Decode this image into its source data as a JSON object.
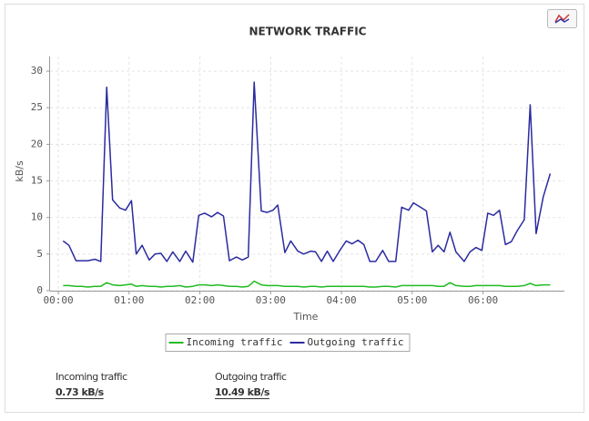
{
  "chart_data": {
    "type": "line",
    "title": "NETWORK TRAFFIC",
    "y_label": "kB/s",
    "x_label": "Time",
    "x": [
      4,
      9,
      15,
      20,
      25,
      31,
      36,
      41,
      46,
      52,
      57,
      62,
      66,
      71,
      77,
      82,
      87,
      92,
      97,
      103,
      108,
      114,
      119,
      124,
      130,
      135,
      140,
      145,
      151,
      156,
      161,
      166,
      172,
      177,
      182,
      186,
      192,
      197,
      203,
      208,
      214,
      218,
      223,
      228,
      233,
      239,
      244,
      249,
      254,
      259,
      264,
      269,
      275,
      280,
      286,
      291,
      297,
      301,
      307,
      312,
      317,
      322,
      327,
      332,
      337,
      344,
      349,
      354,
      359,
      364,
      369,
      374,
      379,
      384,
      389,
      395,
      400,
      405,
      411,
      417
    ],
    "series": [
      {
        "name": "Incoming traffic",
        "color": "#22bb22",
        "values": [
          0.7,
          0.7,
          0.6,
          0.6,
          0.5,
          0.6,
          0.6,
          1.1,
          0.8,
          0.7,
          0.8,
          0.9,
          0.6,
          0.7,
          0.6,
          0.6,
          0.5,
          0.6,
          0.6,
          0.7,
          0.5,
          0.6,
          0.8,
          0.8,
          0.7,
          0.8,
          0.7,
          0.6,
          0.6,
          0.5,
          0.6,
          1.3,
          0.8,
          0.7,
          0.7,
          0.7,
          0.6,
          0.6,
          0.6,
          0.5,
          0.6,
          0.6,
          0.5,
          0.6,
          0.6,
          0.6,
          0.6,
          0.6,
          0.6,
          0.6,
          0.5,
          0.5,
          0.6,
          0.6,
          0.5,
          0.7,
          0.7,
          0.7,
          0.7,
          0.7,
          0.7,
          0.6,
          0.6,
          1.1,
          0.7,
          0.6,
          0.6,
          0.7,
          0.7,
          0.7,
          0.7,
          0.7,
          0.6,
          0.6,
          0.6,
          0.7,
          1.0,
          0.7,
          0.8,
          0.8
        ]
      },
      {
        "name": "Outgoing traffic",
        "color": "#2b2ba0",
        "values": [
          6.8,
          6.2,
          4.1,
          4.1,
          4.1,
          4.3,
          4.0,
          27.8,
          12.4,
          11.3,
          11.0,
          12.3,
          5.0,
          6.2,
          4.2,
          5.0,
          5.1,
          4.0,
          5.3,
          4.0,
          5.4,
          3.9,
          10.3,
          10.6,
          10.1,
          10.7,
          10.2,
          4.1,
          4.6,
          4.2,
          4.6,
          28.5,
          10.9,
          10.7,
          11.0,
          11.7,
          5.2,
          6.8,
          5.4,
          5.0,
          5.4,
          5.3,
          4.0,
          5.4,
          4.0,
          5.6,
          6.8,
          6.4,
          6.9,
          6.3,
          4.0,
          4.0,
          5.5,
          4.0,
          4.0,
          11.4,
          11.0,
          12.0,
          11.4,
          10.9,
          5.3,
          6.2,
          5.3,
          8.0,
          5.3,
          4.0,
          5.3,
          5.9,
          5.5,
          10.6,
          10.3,
          11.0,
          6.3,
          6.7,
          8.2,
          9.7,
          25.4,
          7.8,
          12.8,
          16.0
        ]
      }
    ],
    "xlim": [
      -7,
      429
    ],
    "xticks": [
      {
        "value": 0,
        "label": "00:00"
      },
      {
        "value": 60,
        "label": "01:00"
      },
      {
        "value": 120,
        "label": "02:00"
      },
      {
        "value": 180,
        "label": "03:00"
      },
      {
        "value": 240,
        "label": "04:00"
      },
      {
        "value": 300,
        "label": "05:00"
      },
      {
        "value": 360,
        "label": "06:00"
      }
    ],
    "ylim": [
      0,
      32
    ],
    "yticks": [
      0,
      5,
      10,
      15,
      20,
      25,
      30
    ],
    "grid": true
  },
  "stats": [
    {
      "label": "Incoming traffic",
      "value": "0.73 kB/s"
    },
    {
      "label": "Outgoing traffic",
      "value": "10.49 kB/s"
    }
  ]
}
